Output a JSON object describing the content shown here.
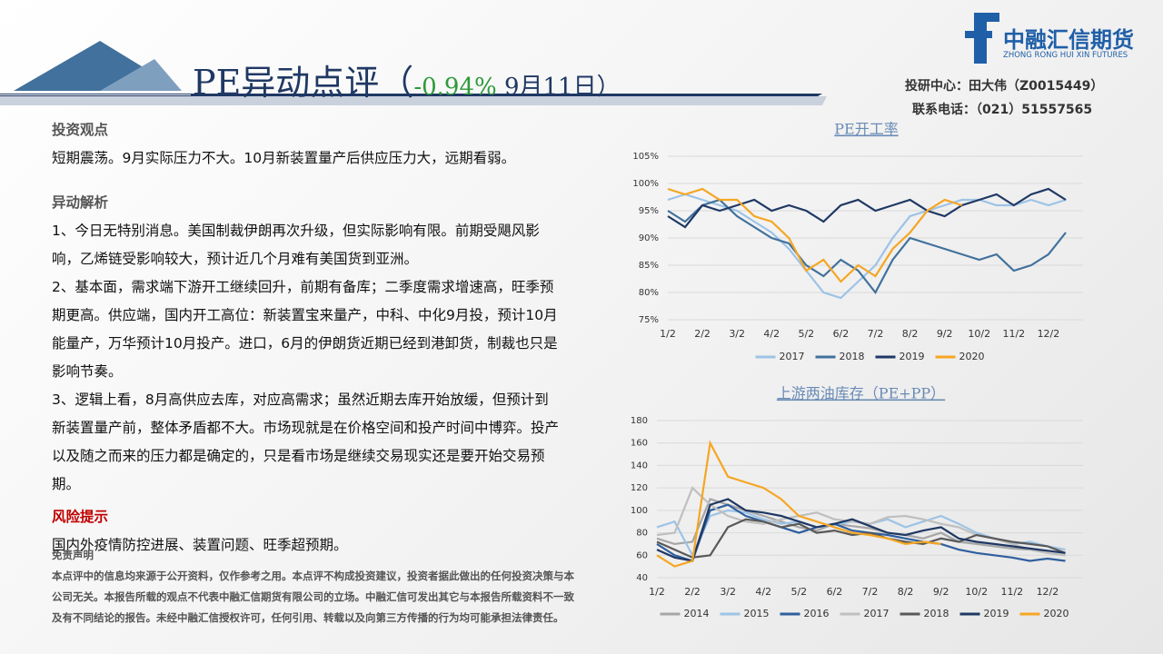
{
  "header": {
    "title_prefix": "PE异动点评（",
    "change": "-0.94%",
    "title_suffix": " 9月11日）",
    "logo_cn": "中融汇信期货",
    "logo_en": "ZHONG RONG HUI XIN FUTURES",
    "analyst": "投研中心：田大伟（Z0015449）",
    "phone": "联系电话：（021）51557565"
  },
  "sections": [
    {
      "heading": "投资观点",
      "paragraphs": [
        "短期震荡。9月实际压力不大。10月新装置量产后供应压力大，远期看弱。"
      ]
    },
    {
      "heading": "异动解析",
      "paragraphs": [
        "1、今日无特别消息。美国制裁伊朗再次升级，但实际影响有限。前期受飓风影响，乙烯链受影响较大，预计近几个月难有美国货到亚洲。",
        "2、基本面，需求端下游开工继续回升，前期有备库；二季度需求增速高，旺季预期更高。供应端，国内开工高位：新装置宝来量产，中科、中化9月投，预计10月能量产，万华预计10月投产。进口，6月的伊朗货近期已经到港卸货，制裁也只是影响节奏。",
        "3、逻辑上看，8月高供应去库，对应高需求；虽然近期去库开始放缓，但预计到新装置量产前，整体矛盾都不大。市场现就是在价格空间和投产时间中博弈。投产以及随之而来的压力都是确定的，只是看市场是继续交易现实还是要开始交易预期。"
      ]
    },
    {
      "heading": "风险提示",
      "paragraphs": [
        "国内外疫情防控进展、装置问题、旺季超预期。"
      ]
    }
  ],
  "disclaimer": {
    "heading": "免责声明",
    "text": "本点评中的信息均来源于公开资料，仅作参考之用。本点评不构成投资建议，投资者据此做出的任何投资决策与本公司无关。本报告所载的观点不代表中融汇信期货有限公司的立场。中融汇信可发出其它与本报告所载资料不一致及有不同结论的报告。未经中融汇信授权许可，任何引用、转载以及向第三方传播的行为均可能承担法律责任。"
  },
  "chart_data": [
    {
      "type": "line",
      "title": "PE开工率",
      "categories": [
        "1/2",
        null,
        "2/2",
        null,
        "3/2",
        null,
        "4/2",
        null,
        "5/2",
        null,
        "6/2",
        null,
        "7/2",
        null,
        "8/2",
        null,
        "9/2",
        null,
        "10/2",
        null,
        "11/2",
        null,
        "12/2",
        null
      ],
      "ylim": [
        75,
        105
      ],
      "yticks": [
        {
          "value": 75,
          "label": "75%"
        },
        {
          "value": 80,
          "label": "80%"
        },
        {
          "value": 85,
          "label": "85%"
        },
        {
          "value": 90,
          "label": "90%"
        },
        {
          "value": 95,
          "label": "95%"
        },
        {
          "value": 100,
          "label": "100%"
        },
        {
          "value": 105,
          "label": "105%"
        }
      ],
      "grid": true,
      "series": [
        {
          "name": "2017",
          "color": "#9dc3e6",
          "values": [
            97,
            98,
            97,
            96,
            95,
            93,
            91,
            88,
            84,
            80,
            79,
            82,
            85,
            90,
            94,
            95,
            96,
            97,
            97,
            96,
            96,
            97,
            96,
            97
          ]
        },
        {
          "name": "2018",
          "color": "#41719c",
          "values": [
            95,
            93,
            96,
            97,
            94,
            92,
            90,
            89,
            85,
            83,
            86,
            84,
            80,
            86,
            90,
            89,
            88,
            87,
            86,
            87,
            84,
            85,
            87,
            91
          ]
        },
        {
          "name": "2019",
          "color": "#1f3864",
          "values": [
            94,
            92,
            96,
            95,
            96,
            97,
            95,
            96,
            95,
            93,
            96,
            97,
            95,
            96,
            97,
            95,
            94,
            96,
            97,
            98,
            96,
            98,
            99,
            97
          ]
        },
        {
          "name": "2020",
          "color": "#f5a623",
          "values": [
            99,
            98,
            99,
            97,
            97,
            94,
            93,
            90,
            84,
            86,
            82,
            85,
            83,
            88,
            91,
            95,
            97,
            96,
            null,
            null,
            null,
            null,
            null,
            null
          ]
        }
      ]
    },
    {
      "type": "line",
      "title": "上游两油库存（PE+PP）",
      "categories": [
        "1/2",
        null,
        "2/2",
        null,
        "3/2",
        null,
        "4/2",
        null,
        "5/2",
        null,
        "6/2",
        null,
        "7/2",
        null,
        "8/2",
        null,
        "9/2",
        null,
        "10/2",
        null,
        "11/2",
        null,
        "12/2",
        null
      ],
      "ylim": [
        40,
        180
      ],
      "yticks": [
        40,
        60,
        80,
        100,
        120,
        140,
        160,
        180
      ],
      "grid": true,
      "series": [
        {
          "name": "2014",
          "color": "#a6a6a6",
          "values": [
            75,
            70,
            72,
            110,
            105,
            100,
            95,
            90,
            85,
            82,
            88,
            86,
            84,
            80,
            78,
            75,
            80,
            72,
            70,
            68,
            66,
            65,
            62,
            60
          ]
        },
        {
          "name": "2015",
          "color": "#9dc3e6",
          "values": [
            85,
            90,
            60,
            95,
            100,
            98,
            92,
            88,
            90,
            85,
            87,
            90,
            88,
            92,
            85,
            90,
            95,
            88,
            80,
            75,
            70,
            72,
            68,
            65
          ]
        },
        {
          "name": "2016",
          "color": "#2e5f9e",
          "values": [
            70,
            60,
            55,
            100,
            105,
            95,
            90,
            85,
            80,
            85,
            88,
            82,
            80,
            78,
            75,
            72,
            70,
            65,
            62,
            60,
            58,
            55,
            57,
            55
          ]
        },
        {
          "name": "2017",
          "color": "#bfbfbf",
          "values": [
            78,
            80,
            120,
            105,
            95,
            90,
            88,
            92,
            95,
            98,
            92,
            90,
            88,
            94,
            95,
            92,
            88,
            85,
            78,
            75,
            70,
            65,
            62,
            60
          ]
        },
        {
          "name": "2018",
          "color": "#595959",
          "values": [
            72,
            65,
            58,
            60,
            85,
            92,
            90,
            85,
            88,
            80,
            82,
            78,
            80,
            75,
            72,
            70,
            75,
            72,
            78,
            75,
            72,
            70,
            68,
            62
          ]
        },
        {
          "name": "2019",
          "color": "#1f3864",
          "values": [
            65,
            58,
            55,
            105,
            110,
            100,
            98,
            95,
            90,
            85,
            88,
            92,
            86,
            80,
            78,
            82,
            85,
            75,
            72,
            70,
            68,
            66,
            64,
            62
          ]
        },
        {
          "name": "2020",
          "color": "#f5a623",
          "values": [
            60,
            50,
            55,
            160,
            130,
            125,
            120,
            110,
            95,
            90,
            85,
            80,
            78,
            75,
            70,
            72,
            70,
            null,
            null,
            null,
            null,
            null,
            null,
            null
          ]
        }
      ]
    }
  ]
}
